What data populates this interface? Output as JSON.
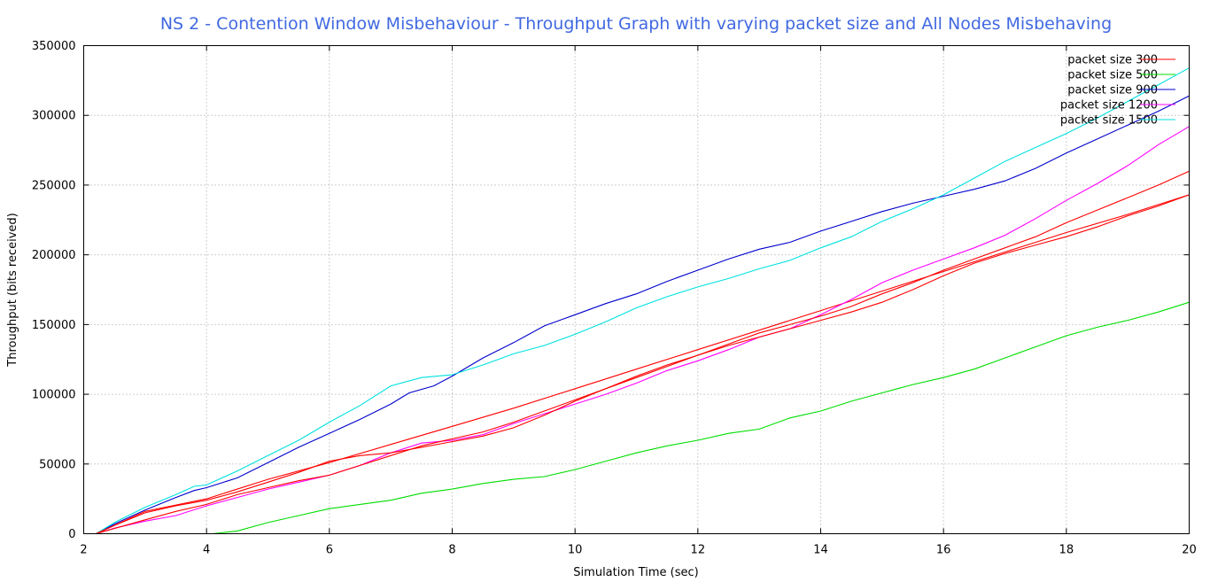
{
  "chart_data": {
    "type": "line",
    "title": "NS 2 - Contention Window Misbehaviour - Throughput Graph with varying packet size and All Nodes Misbehaving",
    "xlabel": "Simulation Time (sec)",
    "ylabel": "Throughput (bits received)",
    "xlim": [
      2,
      20
    ],
    "ylim": [
      0,
      350000
    ],
    "xticks": [
      "2",
      "4",
      "6",
      "8",
      "10",
      "12",
      "14",
      "16",
      "18",
      "20"
    ],
    "yticks": [
      "0",
      "50000",
      "100000",
      "150000",
      "200000",
      "250000",
      "300000",
      "350000"
    ],
    "grid": true,
    "legend_position": "top-right",
    "series": [
      {
        "name": "packet size 300",
        "color": "#ff0000",
        "x": [
          2.2,
          3,
          4,
          5,
          6,
          7,
          8,
          9,
          10,
          11,
          12,
          13,
          14,
          15,
          16,
          17,
          18,
          19,
          20
        ],
        "y": [
          0,
          16000,
          25000,
          39000,
          51000,
          64000,
          77000,
          90000,
          104000,
          118000,
          132000,
          146000,
          160000,
          174000,
          188000,
          202000,
          216000,
          229000,
          243000
        ]
      },
      {
        "name": "packet size 500",
        "color": "#00dd00",
        "x": [
          4.1,
          4.5,
          5,
          5.5,
          6,
          6.5,
          7,
          7.5,
          8,
          8.5,
          9,
          9.5,
          10,
          10.5,
          11,
          11.5,
          12,
          12.5,
          13,
          13.5,
          14,
          14.5,
          15,
          15.5,
          16,
          16.5,
          17,
          17.5,
          18,
          18.5,
          19,
          19.5,
          20
        ],
        "y": [
          0,
          2000,
          8000,
          13000,
          18000,
          21000,
          24000,
          29000,
          32000,
          36000,
          39000,
          41000,
          46000,
          52000,
          58000,
          63000,
          67000,
          72000,
          75000,
          83000,
          88000,
          95000,
          101000,
          107000,
          112000,
          118000,
          126000,
          134000,
          142000,
          148000,
          153000,
          159000,
          166000
        ]
      },
      {
        "name": "packet size 900",
        "color": "#0000cc",
        "x": [
          2.2,
          2.5,
          3,
          3.5,
          3.8,
          4,
          4.5,
          5,
          5.5,
          6,
          6.5,
          7,
          7.3,
          7.7,
          8,
          8.5,
          9,
          9.5,
          10,
          10.5,
          11,
          11.5,
          12,
          12.5,
          13,
          13.5,
          14,
          14.5,
          15,
          15.5,
          16,
          16.5,
          17,
          17.5,
          18,
          18.5,
          19,
          19.5,
          20
        ],
        "y": [
          0,
          7000,
          17000,
          26000,
          31000,
          33000,
          40000,
          51000,
          62000,
          72000,
          82000,
          93000,
          101000,
          106000,
          113000,
          126000,
          137000,
          149000,
          157000,
          165000,
          172000,
          181000,
          189000,
          197000,
          204000,
          209000,
          217000,
          224000,
          231000,
          237000,
          242000,
          247000,
          253000,
          262000,
          273000,
          283000,
          293000,
          303000,
          314000
        ]
      },
      {
        "name": "packet size 1200",
        "color": "#ff00ff",
        "x": [
          2.2,
          2.5,
          3,
          3.5,
          4,
          4.5,
          5,
          5.5,
          6,
          6.5,
          7,
          7.5,
          8,
          8.5,
          9,
          9.5,
          10,
          10.5,
          11,
          11.5,
          12,
          12.5,
          13,
          13.5,
          14,
          14.5,
          15,
          15.5,
          16,
          16.5,
          17,
          17.5,
          18,
          18.5,
          19,
          19.5,
          20
        ],
        "y": [
          0,
          4000,
          9000,
          13000,
          20000,
          26000,
          32000,
          37000,
          42000,
          49000,
          58000,
          65000,
          67000,
          71000,
          79000,
          86000,
          93000,
          100000,
          108000,
          117000,
          124000,
          132000,
          141000,
          147000,
          157000,
          168000,
          180000,
          189000,
          197000,
          205000,
          214000,
          226000,
          239000,
          251000,
          264000,
          279000,
          292000
        ]
      },
      {
        "name": "packet size 1500",
        "color": "#00e0e0",
        "x": [
          2.2,
          2.5,
          3,
          3.5,
          3.8,
          4,
          4.5,
          5,
          5.5,
          6,
          6.5,
          7,
          7.5,
          8,
          8.5,
          9,
          9.5,
          10,
          10.5,
          11,
          11.5,
          12,
          12.5,
          13,
          13.5,
          14,
          14.5,
          15,
          15.5,
          16,
          16.5,
          17,
          17.5,
          18,
          18.5,
          19,
          19.5,
          20
        ],
        "y": [
          0,
          8000,
          19000,
          28000,
          34000,
          35000,
          45000,
          56000,
          67000,
          80000,
          92000,
          106000,
          112000,
          114000,
          121000,
          129000,
          135000,
          143000,
          152000,
          162000,
          170000,
          177000,
          183000,
          190000,
          196000,
          205000,
          213000,
          224000,
          233000,
          243000,
          255000,
          267000,
          277000,
          287000,
          298000,
          310000,
          322000,
          334000
        ]
      },
      {
        "name": "",
        "color": "#ff0000",
        "x": [
          2.2,
          3,
          3.5,
          4,
          4.5,
          5,
          5.5,
          6,
          6.5,
          7,
          7.5,
          8,
          8.5,
          9,
          9.5,
          10,
          10.5,
          11,
          11.5,
          12,
          12.5,
          13,
          13.5,
          14,
          14.5,
          15,
          15.5,
          16,
          16.5,
          17,
          17.5,
          18,
          18.5,
          19,
          19.5,
          20
        ],
        "y": [
          0,
          10000,
          16000,
          21000,
          28000,
          33000,
          38000,
          42000,
          49000,
          56000,
          63000,
          68000,
          73000,
          80000,
          88000,
          96000,
          104000,
          112000,
          120000,
          128000,
          136000,
          144000,
          150000,
          156000,
          163000,
          172000,
          180000,
          189000,
          197000,
          205000,
          213000,
          223000,
          232000,
          241000,
          250000,
          260000
        ]
      },
      {
        "name": "",
        "color": "#ff0000",
        "x": [
          2.2,
          2.5,
          3,
          3.5,
          4,
          4.5,
          5,
          5.5,
          6,
          6.5,
          7,
          7.5,
          8,
          8.5,
          9,
          9.5,
          10,
          10.5,
          11,
          11.5,
          12,
          12.5,
          13,
          13.5,
          14,
          14.5,
          15,
          15.5,
          16,
          16.5,
          17,
          17.5,
          18,
          18.5,
          19,
          19.5,
          20
        ],
        "y": [
          0,
          6000,
          15000,
          20000,
          24000,
          30000,
          37000,
          44000,
          52000,
          56000,
          58000,
          62000,
          66000,
          70000,
          76000,
          85000,
          95000,
          104000,
          113000,
          121000,
          128000,
          135000,
          141000,
          147000,
          153000,
          159000,
          166000,
          175000,
          185000,
          194000,
          201000,
          207000,
          213000,
          220000,
          228000,
          235000,
          243000
        ]
      }
    ]
  }
}
